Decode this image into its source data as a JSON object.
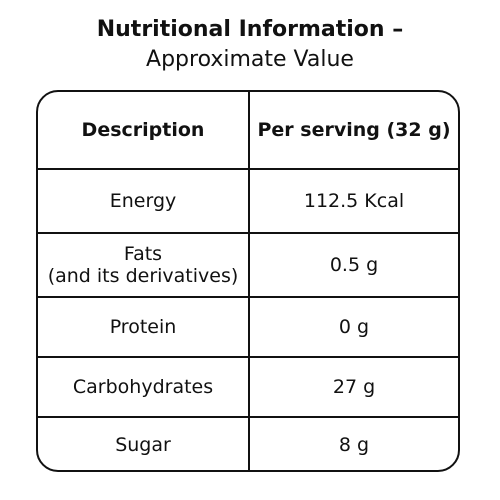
{
  "title": "Nutritional Information –",
  "subtitle": "Approximate Value",
  "table": {
    "headers": {
      "description": "Description",
      "per_serving": "Per serving (32 g)"
    },
    "rows": [
      {
        "description": "Energy",
        "value": "112.5 Kcal"
      },
      {
        "description": "Fats",
        "description_note": "(and its derivatives)",
        "value": "0.5 g"
      },
      {
        "description": "Protein",
        "value": "0 g"
      },
      {
        "description": "Carbohydrates",
        "value": "27 g"
      },
      {
        "description": "Sugar",
        "value": "8 g"
      }
    ]
  }
}
